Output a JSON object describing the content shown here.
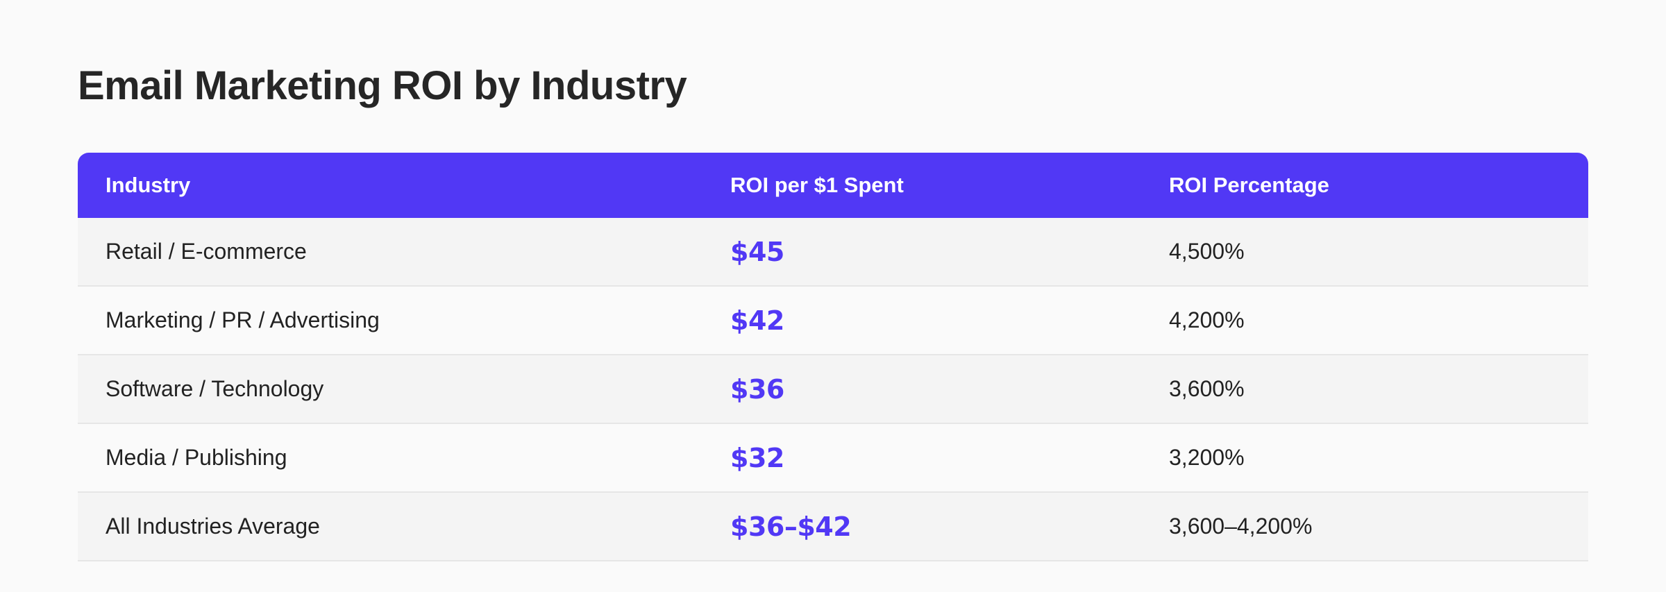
{
  "title": "Email Marketing ROI by Industry",
  "colors": {
    "accent": "#5138f5",
    "header_text": "#ffffff",
    "row_alt": "#f4f4f4",
    "background": "#fafafa"
  },
  "table": {
    "headers": [
      "Industry",
      "ROI per $1 Spent",
      "ROI Percentage"
    ],
    "rows": [
      {
        "industry": "Retail / E-commerce",
        "roi": "$45",
        "pct": "4,500%"
      },
      {
        "industry": "Marketing / PR / Advertising",
        "roi": "$42",
        "pct": "4,200%"
      },
      {
        "industry": "Software / Technology",
        "roi": "$36",
        "pct": "3,600%"
      },
      {
        "industry": "Media / Publishing",
        "roi": "$32",
        "pct": "3,200%"
      },
      {
        "industry": "All Industries Average",
        "roi": "$36–$42",
        "pct": "3,600–4,200%"
      }
    ]
  },
  "chart_data": {
    "type": "table",
    "title": "Email Marketing ROI by Industry",
    "columns": [
      "Industry",
      "ROI per $1 Spent",
      "ROI Percentage"
    ],
    "rows": [
      [
        "Retail / E-commerce",
        "$45",
        "4,500%"
      ],
      [
        "Marketing / PR / Advertising",
        "$42",
        "4,200%"
      ],
      [
        "Software / Technology",
        "$36",
        "3,600%"
      ],
      [
        "Media / Publishing",
        "$32",
        "3,200%"
      ],
      [
        "All Industries Average",
        "$36–$42",
        "3,600–4,200%"
      ]
    ]
  }
}
